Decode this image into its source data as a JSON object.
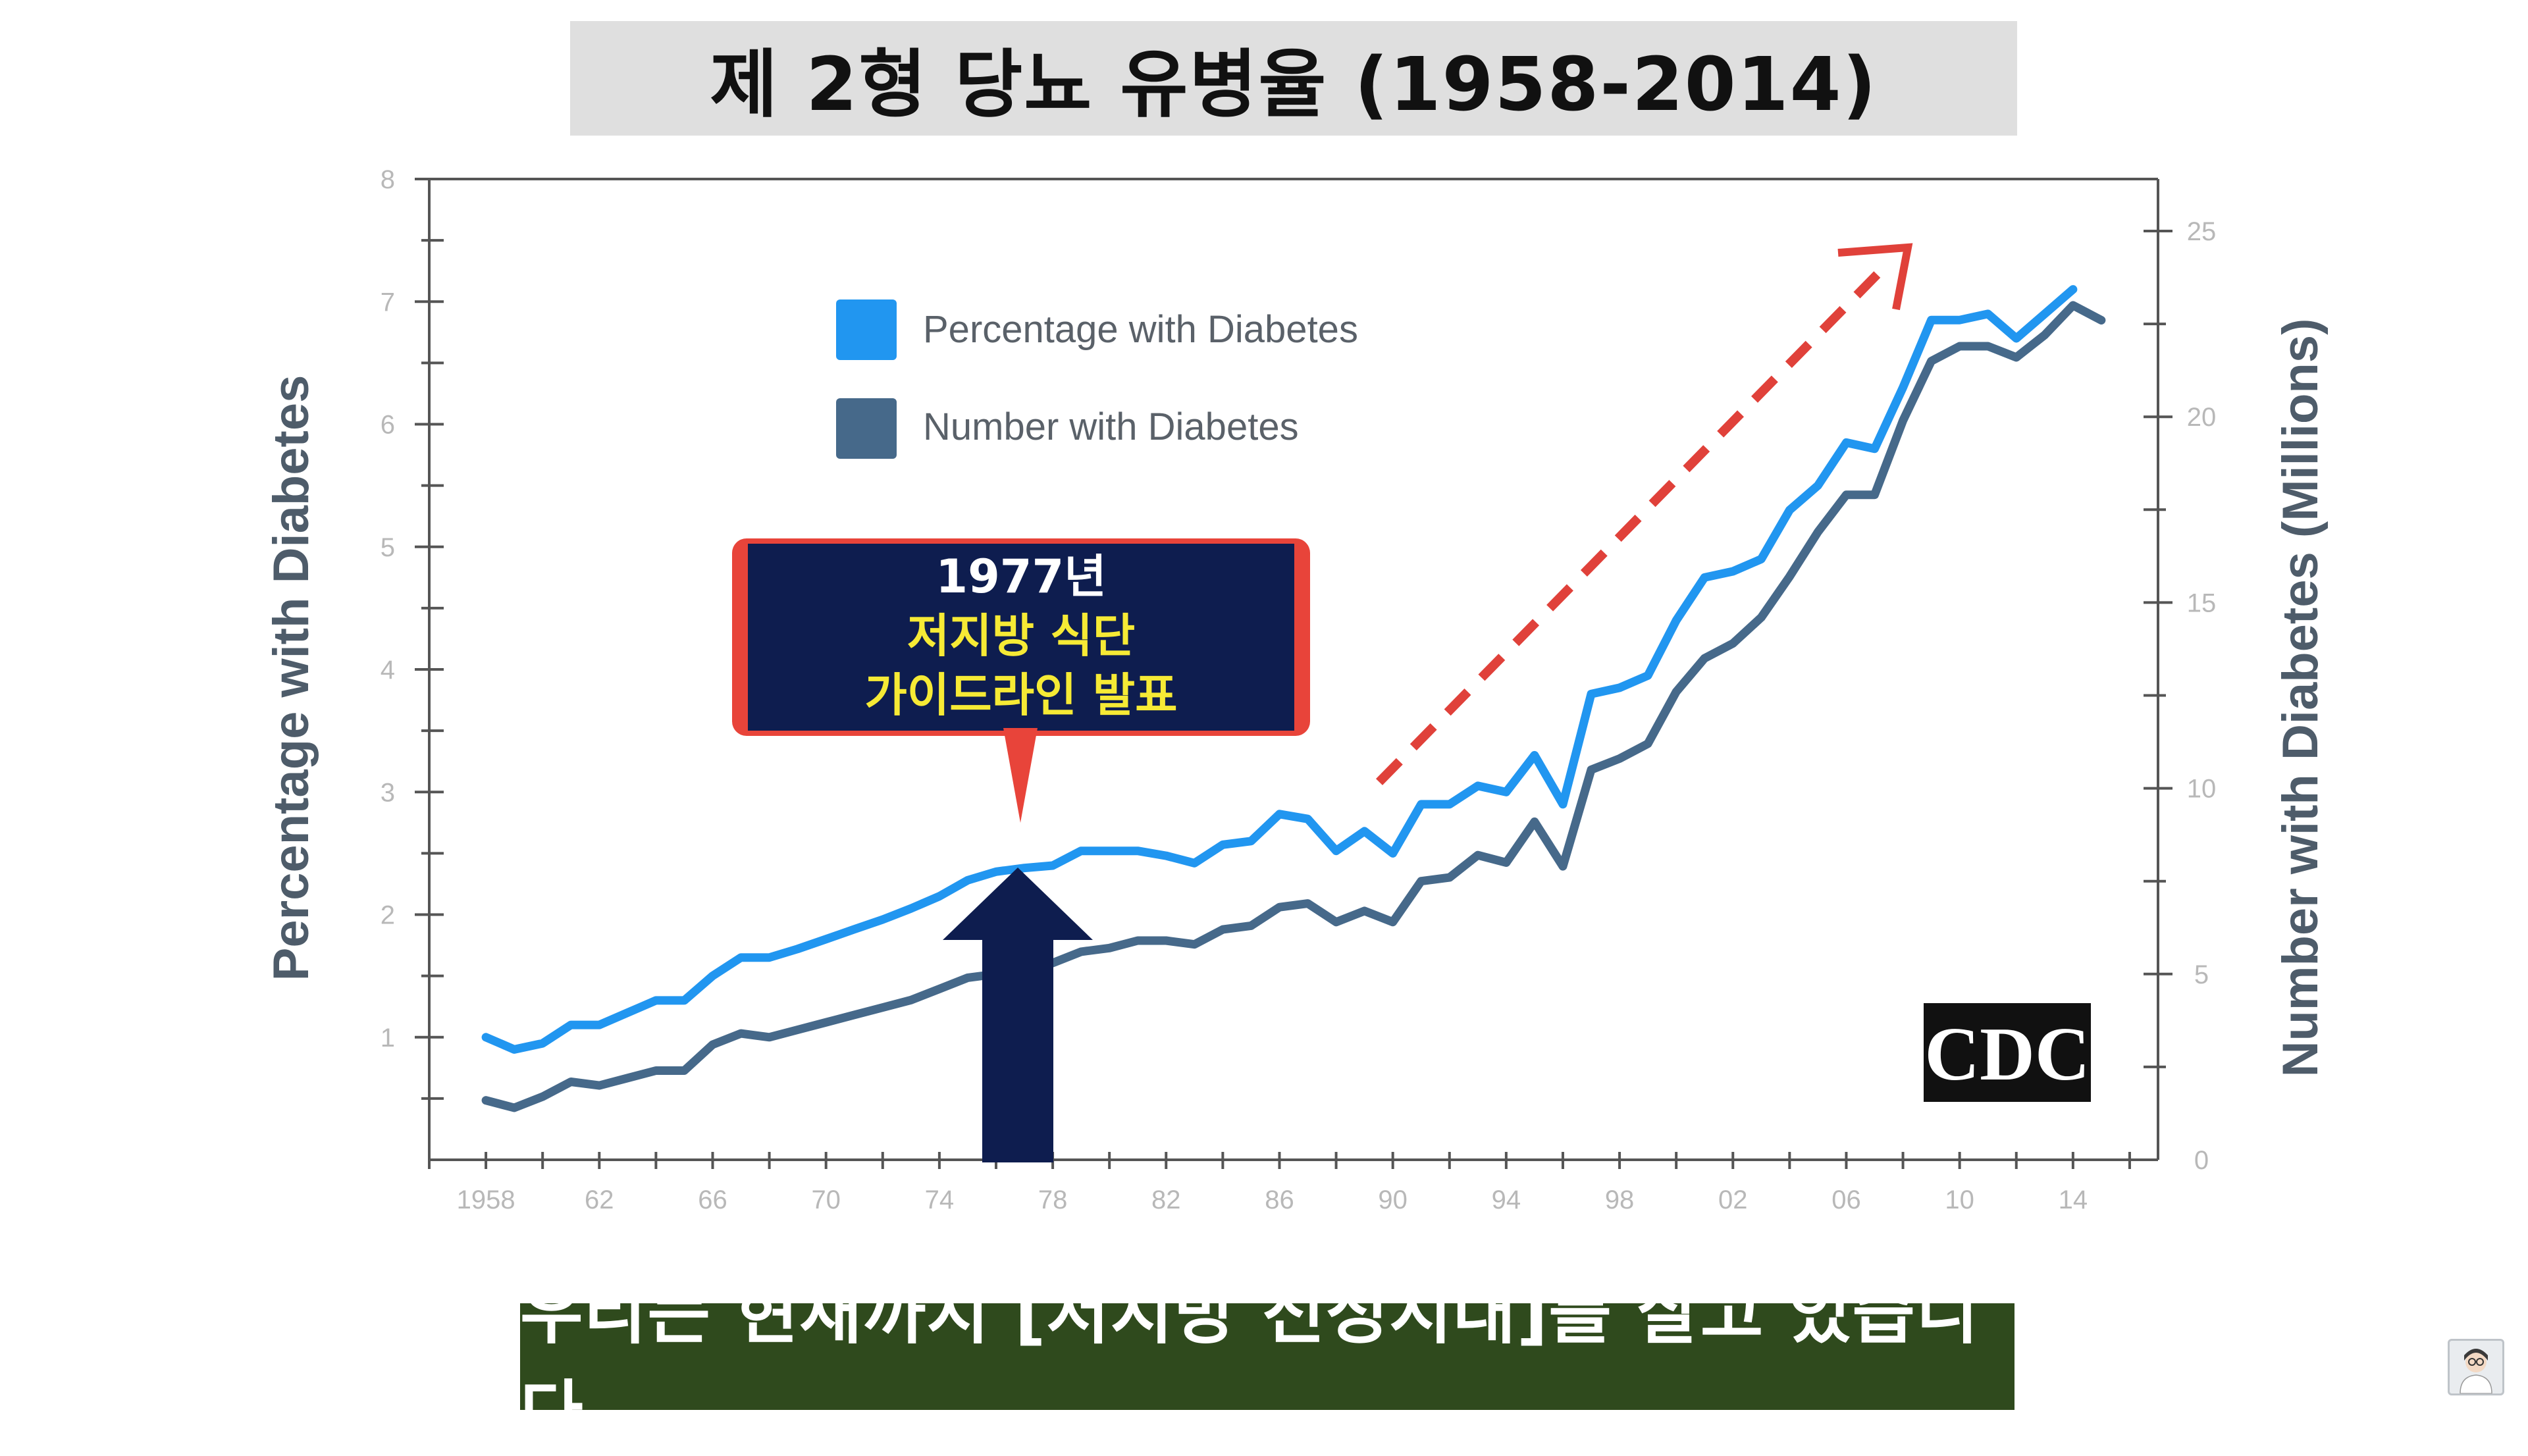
{
  "title": "제 2형 당뇨 유병율 (1958-2014)",
  "subtitle": "우리는 현재까지 [저지방 전성시대]를 살고 있습니다",
  "callout": {
    "year": "1977년",
    "line1": "저지방 식단",
    "line2": "가이드라인 발표"
  },
  "logo_text": "CDC",
  "colors": {
    "percentage_series": "#2196f0",
    "number_series": "#46698a",
    "callout_bg": "#0e1d4f",
    "callout_border": "#e8443a",
    "callout_text_yellow": "#f6ea35",
    "trend_arrow": "#e0413a",
    "up_arrow": "#0e1d4f",
    "subtitle_bg": "#2f4a1d",
    "axis": "#555555",
    "tick_label": "#b8b8b8",
    "axis_title": "#4e5c6a"
  },
  "chart_data": {
    "type": "line",
    "title": "제 2형 당뇨 유병율 (1958-2014)",
    "x": [
      1958,
      1959,
      1960,
      1961,
      1962,
      1963,
      1964,
      1965,
      1966,
      1967,
      1968,
      1969,
      1970,
      1971,
      1972,
      1973,
      1974,
      1975,
      1976,
      1977,
      1978,
      1979,
      1980,
      1981,
      1982,
      1983,
      1984,
      1985,
      1986,
      1987,
      1988,
      1989,
      1990,
      1991,
      1992,
      1993,
      1994,
      1995,
      1996,
      1997,
      1998,
      1999,
      2000,
      2001,
      2002,
      2003,
      2004,
      2005,
      2006,
      2007,
      2008,
      2009,
      2010,
      2011,
      2012,
      2013,
      2014,
      2015
    ],
    "xlim": [
      1956,
      2017
    ],
    "x_ticks": [
      1958,
      1962,
      1966,
      1970,
      1974,
      1978,
      1982,
      1986,
      1990,
      1994,
      1998,
      2002,
      2006,
      2010,
      2014
    ],
    "x_tick_labels": [
      "1958",
      "62",
      "66",
      "70",
      "74",
      "78",
      "82",
      "86",
      "90",
      "94",
      "98",
      "02",
      "06",
      "10",
      "14"
    ],
    "ylabel": "Percentage with Diabetes",
    "ylim": [
      0,
      8
    ],
    "y_ticks": [
      1,
      2,
      3,
      4,
      5,
      6,
      7,
      8
    ],
    "y_tick_labels": [
      "1",
      "2",
      "3",
      "4",
      "5",
      "6",
      "7",
      "8"
    ],
    "y2label": "Number with Diabetes (Millions)",
    "y2lim": [
      0,
      26.4
    ],
    "y2_ticks": [
      0,
      5,
      10,
      15,
      20,
      25
    ],
    "y2_tick_labels": [
      "0",
      "5",
      "10",
      "15",
      "20",
      "25"
    ],
    "series": [
      {
        "name": "Percentage with Diabetes",
        "axis": "left",
        "values": [
          1.0,
          0.9,
          0.95,
          1.1,
          1.1,
          1.2,
          1.3,
          1.3,
          1.5,
          1.65,
          1.65,
          1.72,
          1.8,
          1.88,
          1.96,
          2.05,
          2.15,
          2.28,
          2.35,
          2.38,
          2.4,
          2.52,
          2.52,
          2.52,
          2.48,
          2.42,
          2.57,
          2.6,
          2.82,
          2.78,
          2.52,
          2.68,
          2.5,
          2.9,
          2.9,
          3.05,
          3.0,
          3.3,
          2.9,
          3.8,
          3.85,
          3.95,
          4.4,
          4.75,
          4.8,
          4.9,
          5.3,
          5.5,
          5.85,
          5.8,
          6.3,
          6.85,
          6.85,
          6.9,
          6.7,
          6.9,
          7.1,
          null
        ]
      },
      {
        "name": "Number with Diabetes",
        "axis": "right",
        "values": [
          1.6,
          1.4,
          1.7,
          2.1,
          2.0,
          2.2,
          2.4,
          2.4,
          3.1,
          3.4,
          3.3,
          3.5,
          3.7,
          3.9,
          4.1,
          4.3,
          4.6,
          4.9,
          5.0,
          5.1,
          5.3,
          5.6,
          5.7,
          5.9,
          5.9,
          5.8,
          6.2,
          6.3,
          6.8,
          6.9,
          6.4,
          6.7,
          6.4,
          7.5,
          7.6,
          8.2,
          8.0,
          9.1,
          7.9,
          10.5,
          10.8,
          11.2,
          12.6,
          13.5,
          13.9,
          14.6,
          15.7,
          16.9,
          17.9,
          17.9,
          19.9,
          21.5,
          21.9,
          21.9,
          21.6,
          22.2,
          23.0,
          22.6
        ]
      }
    ],
    "legend": [
      "Percentage with Diabetes",
      "Number with Diabetes"
    ],
    "legend_position": "top-left",
    "annotations": [
      "1977년",
      "저지방 식단",
      "가이드라인 발표",
      "CDC"
    ]
  }
}
